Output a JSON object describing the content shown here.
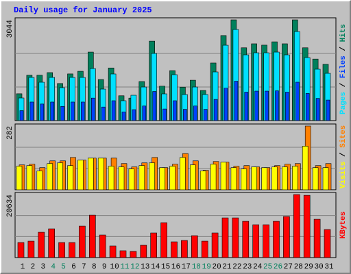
{
  "title": "Daily usage for January 2025",
  "legend_separator": " / ",
  "chart_data": [
    {
      "type": "bar",
      "ylim": [
        0,
        3044
      ],
      "series": [
        {
          "name": "Hits",
          "color": "#00805c",
          "values": [
            810,
            1370,
            1370,
            1450,
            1120,
            1410,
            1490,
            2070,
            1240,
            1590,
            750,
            680,
            1180,
            2400,
            1040,
            1510,
            1010,
            1220,
            910,
            1740,
            2570,
            3044,
            2200,
            2320,
            2280,
            2380,
            2320,
            3044,
            2200,
            1860,
            1700
          ]
        },
        {
          "name": "Files",
          "color": "#0040ff",
          "values": [
            300,
            560,
            500,
            560,
            430,
            560,
            560,
            680,
            410,
            600,
            260,
            330,
            440,
            880,
            350,
            600,
            340,
            440,
            340,
            640,
            980,
            1190,
            860,
            890,
            890,
            900,
            860,
            1160,
            820,
            670,
            620
          ]
        },
        {
          "name": "Pages",
          "color": "#00e0ff",
          "values": [
            683,
            1304,
            1159,
            1304,
            994,
            1304,
            1304,
            1573,
            952,
            1408,
            600,
            766,
            1014,
            2029,
            807,
            1387,
            787,
            1014,
            787,
            1470,
            2277,
            2753,
            1987,
            2049,
            2049,
            2070,
            1987,
            2691,
            1904,
            1553,
            1428
          ]
        }
      ]
    },
    {
      "type": "bar",
      "ylim": [
        0,
        282
      ],
      "series": [
        {
          "name": "Sites",
          "color": "#ff8000",
          "values": [
            110,
            113,
            98,
            128,
            128,
            143,
            131,
            140,
            140,
            140,
            116,
            101,
            119,
            143,
            98,
            113,
            160,
            128,
            86,
            125,
            122,
            104,
            107,
            101,
            98,
            107,
            113,
            116,
            282,
            107,
            116
          ]
        },
        {
          "name": "Visits",
          "color": "#ffff00",
          "values": [
            104,
            107,
            83,
            116,
            119,
            107,
            131,
            140,
            140,
            104,
            101,
            92,
            107,
            119,
            98,
            104,
            143,
            110,
            83,
            113,
            122,
            98,
            92,
            101,
            98,
            101,
            101,
            104,
            193,
            98,
            98
          ]
        }
      ]
    },
    {
      "type": "bar",
      "ylim": [
        0,
        20634
      ],
      "categories": [
        "1",
        "2",
        "3",
        "4",
        "5",
        "6",
        "7",
        "8",
        "9",
        "10",
        "11",
        "12",
        "13",
        "14",
        "15",
        "16",
        "17",
        "18",
        "19",
        "20",
        "21",
        "22",
        "23",
        "24",
        "25",
        "26",
        "27",
        "28",
        "29",
        "30",
        "31"
      ],
      "highlight": [
        3,
        4,
        10,
        11,
        17,
        18,
        24,
        25
      ],
      "highlight_color": "#00805c",
      "label_color": "#000000",
      "series": [
        {
          "name": "KBytes",
          "color": "#ff0000",
          "values": [
            4928,
            5376,
            8288,
            9408,
            4928,
            4928,
            10304,
            13888,
            7392,
            3808,
            2240,
            2016,
            4032,
            8064,
            11424,
            5152,
            5600,
            7168,
            5376,
            8064,
            12992,
            12992,
            11872,
            10752,
            10752,
            11872,
            13440,
            20634,
            20384,
            12544,
            9184
          ]
        }
      ]
    }
  ]
}
